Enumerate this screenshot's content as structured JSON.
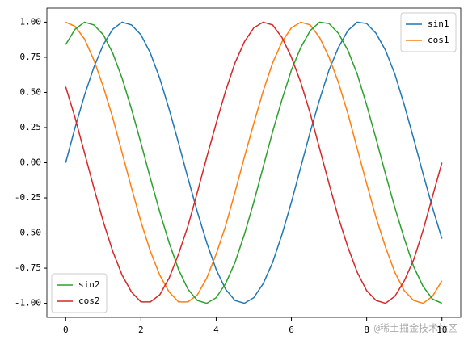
{
  "chart_data": {
    "type": "line",
    "x": [
      0,
      0.25,
      0.5,
      0.75,
      1,
      1.25,
      1.5,
      1.75,
      2,
      2.25,
      2.5,
      2.75,
      3,
      3.25,
      3.5,
      3.75,
      4,
      4.25,
      4.5,
      4.75,
      5,
      5.25,
      5.5,
      5.75,
      6,
      6.25,
      6.5,
      6.75,
      7,
      7.25,
      7.5,
      7.75,
      8,
      8.25,
      8.5,
      8.75,
      9,
      9.25,
      9.5,
      9.75,
      10
    ],
    "series": [
      {
        "name": "sin1",
        "color": "#1f77b4",
        "legend": "upper right",
        "values": [
          0,
          0.25,
          0.48,
          0.68,
          0.84,
          0.95,
          1.0,
          0.98,
          0.91,
          0.78,
          0.6,
          0.38,
          0.14,
          -0.11,
          -0.35,
          -0.57,
          -0.76,
          -0.9,
          -0.98,
          -1.0,
          -0.96,
          -0.86,
          -0.71,
          -0.51,
          -0.28,
          -0.03,
          0.22,
          0.45,
          0.66,
          0.82,
          0.94,
          1.0,
          0.99,
          0.92,
          0.8,
          0.63,
          0.41,
          0.17,
          -0.08,
          -0.32,
          -0.54
        ]
      },
      {
        "name": "cos1",
        "color": "#ff7f0e",
        "legend": "upper right",
        "values": [
          1,
          0.97,
          0.88,
          0.73,
          0.54,
          0.32,
          0.07,
          -0.18,
          -0.42,
          -0.63,
          -0.8,
          -0.92,
          -0.99,
          -0.99,
          -0.94,
          -0.82,
          -0.65,
          -0.45,
          -0.21,
          0.04,
          0.28,
          0.51,
          0.71,
          0.86,
          0.96,
          1.0,
          0.98,
          0.89,
          0.75,
          0.57,
          0.35,
          0.1,
          -0.15,
          -0.39,
          -0.6,
          -0.78,
          -0.91,
          -0.98,
          -1.0,
          -0.95,
          -0.84
        ]
      },
      {
        "name": "sin2",
        "color": "#2ca02c",
        "legend": "lower left",
        "values": [
          0.84,
          0.95,
          1.0,
          0.98,
          0.91,
          0.78,
          0.6,
          0.38,
          0.14,
          -0.11,
          -0.35,
          -0.57,
          -0.76,
          -0.9,
          -0.98,
          -1.0,
          -0.96,
          -0.86,
          -0.71,
          -0.51,
          -0.28,
          -0.03,
          0.22,
          0.45,
          0.66,
          0.82,
          0.94,
          1.0,
          0.99,
          0.92,
          0.8,
          0.63,
          0.41,
          0.17,
          -0.08,
          -0.32,
          -0.54,
          -0.74,
          -0.88,
          -0.97,
          -1.0
        ]
      },
      {
        "name": "cos2",
        "color": "#d62728",
        "legend": "lower left",
        "values": [
          0.54,
          0.32,
          0.07,
          -0.18,
          -0.42,
          -0.63,
          -0.8,
          -0.92,
          -0.99,
          -0.99,
          -0.94,
          -0.82,
          -0.65,
          -0.45,
          -0.21,
          0.04,
          0.28,
          0.51,
          0.71,
          0.86,
          0.96,
          1.0,
          0.98,
          0.89,
          0.75,
          0.57,
          0.35,
          0.1,
          -0.15,
          -0.39,
          -0.6,
          -0.78,
          -0.91,
          -0.98,
          -1.0,
          -0.95,
          -0.84,
          -0.69,
          -0.48,
          -0.24,
          0.0
        ]
      }
    ],
    "xlim": [
      -0.5,
      10.5
    ],
    "ylim": [
      -1.1,
      1.1
    ],
    "xticks": [
      0,
      2,
      4,
      6,
      8,
      10
    ],
    "yticks": [
      {
        "value": -1,
        "label": "-1.00"
      },
      {
        "value": -0.75,
        "label": "-0.75"
      },
      {
        "value": -0.5,
        "label": "-0.50"
      },
      {
        "value": -0.25,
        "label": "-0.25"
      },
      {
        "value": 0,
        "label": "0.00"
      },
      {
        "value": 0.25,
        "label": "0.25"
      },
      {
        "value": 0.5,
        "label": "0.50"
      },
      {
        "value": 0.75,
        "label": "0.75"
      },
      {
        "value": 1,
        "label": "1.00"
      }
    ],
    "grid": false,
    "watermark": "@稀土掘金技术社区"
  }
}
